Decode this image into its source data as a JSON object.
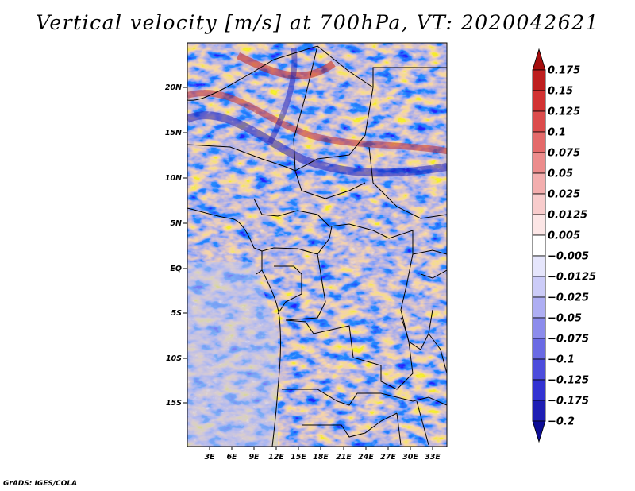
{
  "title": "Vertical velocity [m/s] at 700hPa, VT: 2020042621",
  "credit": "GrADS: IGES/COLA",
  "map": {
    "lat_ticks": [
      "20N",
      "15N",
      "10N",
      "5N",
      "EQ",
      "5S",
      "10S",
      "15S"
    ],
    "lon_ticks": [
      "3E",
      "6E",
      "9E",
      "12E",
      "15E",
      "18E",
      "21E",
      "24E",
      "27E",
      "30E",
      "33E"
    ],
    "field_description": "Vertical velocity shading over Central Africa"
  },
  "colorbar": {
    "labels": [
      "0.175",
      "0.15",
      "0.125",
      "0.1",
      "0.075",
      "0.05",
      "0.025",
      "0.0125",
      "0.005",
      "−0.005",
      "−0.0125",
      "−0.025",
      "−0.05",
      "−0.075",
      "−0.1",
      "−0.125",
      "−0.175",
      "−0.2"
    ],
    "colors": [
      "#a50d0d",
      "#be1e1e",
      "#d23232",
      "#dc4c4c",
      "#e46a6a",
      "#ec8c8c",
      "#f3aeae",
      "#f8cccc",
      "#fce6e6",
      "#ffffff",
      "#e6e6fc",
      "#ccccf8",
      "#aeaef3",
      "#8c8cec",
      "#6a6ae4",
      "#4c4cdc",
      "#3232d2",
      "#1e1eb4",
      "#0d0d96"
    ]
  }
}
